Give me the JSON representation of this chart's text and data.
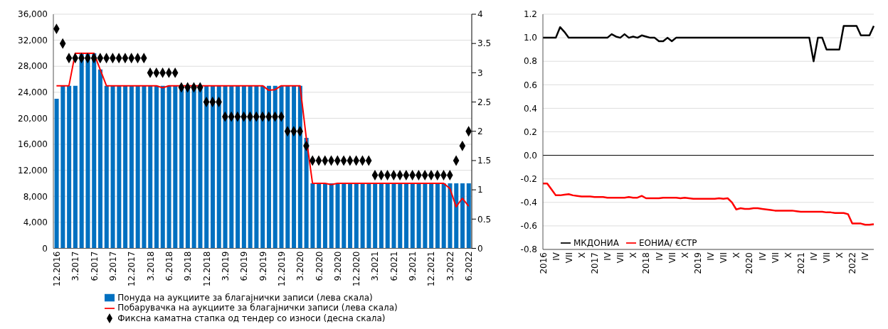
{
  "chart_data": [
    {
      "type": "bar",
      "categories": [
        "12.2016",
        null,
        null,
        "3.2017",
        null,
        null,
        "6.2017",
        null,
        null,
        "9.2017",
        null,
        null,
        "12.2017",
        null,
        null,
        "3.2018",
        null,
        null,
        "6.2018",
        null,
        null,
        "9.2018",
        null,
        null,
        "12.2018",
        null,
        null,
        "3.2019",
        null,
        null,
        "6.2019",
        null,
        null,
        "9.2019",
        null,
        null,
        "12.2019",
        null,
        null,
        "3.2020",
        null,
        null,
        "6.2020",
        null,
        null,
        "9.2020",
        null,
        null,
        "12.2020",
        null,
        null,
        "3.2021",
        null,
        null,
        "6.2021",
        null,
        null,
        "9.2021",
        null,
        null,
        "12.2021",
        null,
        null,
        "3.2022",
        null,
        null,
        "6.2022"
      ],
      "series": [
        {
          "name": "Понуда на аукциите за благајнички записи (лева скала)",
          "color": "#0070c0",
          "values": [
            23000,
            25000,
            25000,
            25000,
            30000,
            30000,
            30000,
            27500,
            25000,
            25000,
            25000,
            25000,
            25000,
            25000,
            25000,
            25000,
            25000,
            25000,
            25000,
            25000,
            25000,
            25000,
            25000,
            25000,
            25000,
            25000,
            25000,
            25000,
            25000,
            25000,
            25000,
            25000,
            25000,
            25000,
            25000,
            25000,
            25000,
            25000,
            25000,
            25000,
            17000,
            10000,
            10000,
            10000,
            10000,
            10000,
            10000,
            10000,
            10000,
            10000,
            10000,
            10000,
            10000,
            10000,
            10000,
            10000,
            10000,
            10000,
            10000,
            10000,
            10000,
            10000,
            10000,
            10000,
            10000,
            10000,
            10000
          ]
        },
        {
          "name": "Побарувачка на аукциите за благајнички записи (лева скала)",
          "type": "line",
          "color": "#ff0000",
          "values": [
            25000,
            25000,
            25000,
            30000,
            30000,
            30000,
            30000,
            27500,
            25000,
            25000,
            25000,
            25000,
            25000,
            25000,
            25000,
            25000,
            25000,
            24700,
            25000,
            25000,
            25000,
            25000,
            25000,
            25000,
            25000,
            25000,
            25000,
            25000,
            25000,
            25000,
            25000,
            25000,
            25000,
            25000,
            24300,
            24400,
            25000,
            25000,
            25000,
            25000,
            17000,
            10000,
            10000,
            10000,
            9800,
            10000,
            10000,
            10000,
            10000,
            10000,
            10000,
            10000,
            10000,
            10000,
            10000,
            10000,
            10000,
            10000,
            10000,
            10000,
            10000,
            10000,
            10000,
            9200,
            6400,
            7700,
            6500
          ]
        },
        {
          "name": "Фиксна каматна стапка од тендер со износи (десна скала)",
          "type": "scatter",
          "axis": "y2",
          "marker": "diamond",
          "color": "#000000",
          "values": [
            3.75,
            3.5,
            3.25,
            3.25,
            3.25,
            3.25,
            3.25,
            3.25,
            3.25,
            3.25,
            3.25,
            3.25,
            3.25,
            3.25,
            3.25,
            3,
            3,
            3,
            3,
            3,
            2.75,
            2.75,
            2.75,
            2.75,
            2.5,
            2.5,
            2.5,
            2.25,
            2.25,
            2.25,
            2.25,
            2.25,
            2.25,
            2.25,
            2.25,
            2.25,
            2.25,
            2,
            2,
            2,
            1.75,
            1.5,
            1.5,
            1.5,
            1.5,
            1.5,
            1.5,
            1.5,
            1.5,
            1.5,
            1.5,
            1.25,
            1.25,
            1.25,
            1.25,
            1.25,
            1.25,
            1.25,
            1.25,
            1.25,
            1.25,
            1.25,
            1.25,
            1.25,
            1.5,
            1.75,
            2
          ]
        }
      ],
      "ylim": [
        0,
        36000
      ],
      "yticks": [
        {
          "value": 0,
          "label": "0"
        },
        {
          "value": 4000,
          "label": "4,000"
        },
        {
          "value": 8000,
          "label": "8,000"
        },
        {
          "value": 12000,
          "label": "12,000"
        },
        {
          "value": 16000,
          "label": "16,000"
        },
        {
          "value": 20000,
          "label": "20,000"
        },
        {
          "value": 24000,
          "label": "24,000"
        },
        {
          "value": 28000,
          "label": "28,000"
        },
        {
          "value": 32000,
          "label": "32,000"
        },
        {
          "value": 36000,
          "label": "36,000"
        }
      ],
      "y2lim": [
        0,
        4
      ],
      "y2ticks": [
        0,
        0.5,
        1,
        1.5,
        2,
        2.5,
        3,
        3.5,
        4
      ],
      "grid": "y",
      "legend": "bottom"
    },
    {
      "type": "line",
      "categories": [
        "2016",
        null,
        null,
        "IV",
        null,
        null,
        "VII",
        null,
        null,
        "X",
        null,
        null,
        "2017",
        null,
        null,
        "IV",
        null,
        null,
        "VII",
        null,
        null,
        "X",
        null,
        null,
        "2018",
        null,
        null,
        "IV",
        null,
        null,
        "VII",
        null,
        null,
        "X",
        null,
        null,
        "2019",
        null,
        null,
        "IV",
        null,
        null,
        "VII",
        null,
        null,
        "X",
        null,
        null,
        "2020",
        null,
        null,
        "IV",
        null,
        null,
        "VII",
        null,
        null,
        "X",
        null,
        null,
        "2021",
        null,
        null,
        "IV",
        null,
        null,
        "VII",
        null,
        null,
        "X",
        null,
        null,
        "2022",
        null,
        null,
        "IV",
        null,
        null
      ],
      "series": [
        {
          "name": "МКДОНИА",
          "color": "#000000",
          "values": [
            1,
            1,
            1,
            1,
            1.09,
            1.05,
            1,
            1,
            1,
            1,
            1,
            1,
            1,
            1,
            1,
            1,
            1.03,
            1.01,
            1,
            1.03,
            1,
            1.01,
            1,
            1.02,
            1.01,
            1,
            1,
            0.97,
            0.97,
            1,
            0.97,
            1,
            1,
            1,
            1,
            1,
            1,
            1,
            1,
            1,
            1,
            1,
            1,
            1,
            1,
            1,
            1,
            1,
            1,
            1,
            1,
            1,
            1,
            1,
            1,
            1,
            1,
            1,
            1,
            1,
            1,
            1,
            1,
            0.8,
            1,
            1,
            0.9,
            0.9,
            0.9,
            0.9,
            1.1,
            1.1,
            1.1,
            1.1,
            1.02,
            1.02,
            1.02,
            1.1
          ]
        },
        {
          "name": "ЕОНИА/ €СТР",
          "color": "#ff0000",
          "values": [
            -0.24,
            -0.24,
            -0.29,
            -0.34,
            -0.34,
            -0.335,
            -0.33,
            -0.34,
            -0.345,
            -0.35,
            -0.35,
            -0.35,
            -0.355,
            -0.355,
            -0.355,
            -0.36,
            -0.36,
            -0.36,
            -0.36,
            -0.36,
            -0.355,
            -0.36,
            -0.36,
            -0.345,
            -0.365,
            -0.365,
            -0.365,
            -0.365,
            -0.36,
            -0.36,
            -0.36,
            -0.36,
            -0.365,
            -0.36,
            -0.365,
            -0.37,
            -0.37,
            -0.37,
            -0.37,
            -0.37,
            -0.37,
            -0.365,
            -0.37,
            -0.365,
            -0.4,
            -0.46,
            -0.45,
            -0.455,
            -0.455,
            -0.45,
            -0.45,
            -0.455,
            -0.46,
            -0.465,
            -0.47,
            -0.47,
            -0.47,
            -0.47,
            -0.47,
            -0.475,
            -0.48,
            -0.48,
            -0.48,
            -0.48,
            -0.48,
            -0.48,
            -0.485,
            -0.485,
            -0.49,
            -0.49,
            -0.49,
            -0.5,
            -0.58,
            -0.58,
            -0.58,
            -0.59,
            -0.59,
            -0.585
          ]
        }
      ],
      "ylim": [
        -0.8,
        1.2
      ],
      "yticks": [
        {
          "value": -0.8,
          "label": "-0.8"
        },
        {
          "value": -0.6,
          "label": "-0.6"
        },
        {
          "value": -0.4,
          "label": "-0.4"
        },
        {
          "value": -0.2,
          "label": "-0.2"
        },
        {
          "value": 0,
          "label": "0.0"
        },
        {
          "value": 0.2,
          "label": "0.2"
        },
        {
          "value": 0.4,
          "label": "0.4"
        },
        {
          "value": 0.6,
          "label": "0.6"
        },
        {
          "value": 0.8,
          "label": "0.8"
        },
        {
          "value": 1,
          "label": "1.0"
        },
        {
          "value": 1.2,
          "label": "1.2"
        }
      ],
      "ref_lines": [
        {
          "axis": "y",
          "value": 0,
          "color": "#000000"
        }
      ],
      "line_style": "solid",
      "grid": "y",
      "legend": "bottom left"
    }
  ]
}
